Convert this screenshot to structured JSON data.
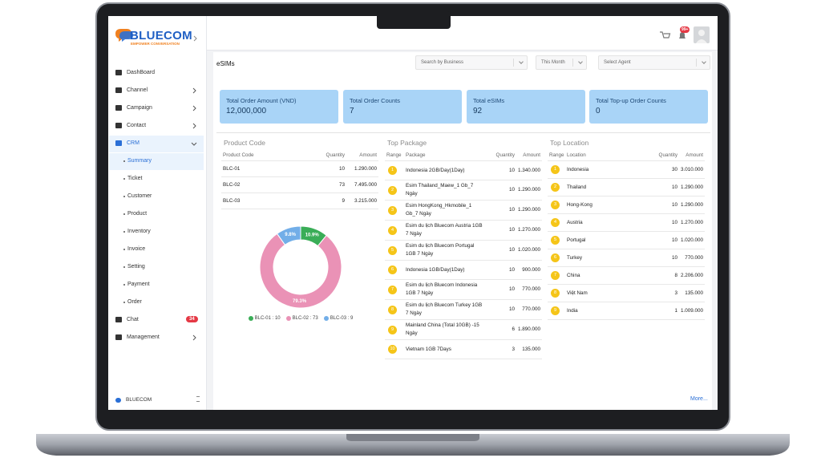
{
  "brand": {
    "name": "BLUECOM",
    "tagline": "EMPOWER CONVERSATION"
  },
  "header": {
    "notification_badge": "99+"
  },
  "sidebar": {
    "items": [
      {
        "label": "DashBoard"
      },
      {
        "label": "Channel",
        "expandable": true
      },
      {
        "label": "Campaign",
        "expandable": true
      },
      {
        "label": "Contact",
        "expandable": true
      },
      {
        "label": "CRM",
        "expandable": true,
        "open": true,
        "active": true
      },
      {
        "label": "Summary",
        "sub": true,
        "active": true
      },
      {
        "label": "Ticket",
        "sub": true
      },
      {
        "label": "Customer",
        "sub": true
      },
      {
        "label": "Product",
        "sub": true
      },
      {
        "label": "Inventory",
        "sub": true
      },
      {
        "label": "Invoice",
        "sub": true
      },
      {
        "label": "Setting",
        "sub": true
      },
      {
        "label": "Payment",
        "sub": true
      },
      {
        "label": "Order",
        "sub": true
      },
      {
        "label": "Chat",
        "badge": 34
      },
      {
        "label": "Management",
        "expandable": true
      }
    ],
    "footer": "BLUECOM"
  },
  "page": {
    "title": "eSIMs",
    "filters": [
      "Search by Business",
      "This Month",
      "Select Agent"
    ]
  },
  "stats": [
    {
      "label": "Total Order Amount (VND)",
      "value": "12,000,000"
    },
    {
      "label": "Total Order Counts",
      "value": 7
    },
    {
      "label": "Total eSIMs",
      "value": 92
    },
    {
      "label": "Total Top-up Order Counts",
      "value": 0
    }
  ],
  "product_code": {
    "title": "Product Code",
    "columns": [
      "Product Code",
      "Quantity",
      "Amount"
    ],
    "rows": [
      [
        "BLC-01",
        10,
        "1.290.000"
      ],
      [
        "BLC-02",
        73,
        "7.495.000"
      ],
      [
        "BLC-03",
        9,
        "3.215.000"
      ]
    ]
  },
  "top_package": {
    "title": "Top Package",
    "columns": [
      "Range",
      "Package",
      "Quantity",
      "Amount"
    ],
    "rows": [
      [
        1,
        "Indonesia 2GB/Day(1Day)",
        10,
        "1.340.000"
      ],
      [
        2,
        "Esim Thailand_Maew_1 Gb_7 Ngày",
        10,
        "1.290.000"
      ],
      [
        3,
        "Esim HongKong_Hkmobile_1 Gb_7 Ngày",
        10,
        "1.290.000"
      ],
      [
        4,
        "Esim du lịch Bluecom Austria 1GB 7 Ngày",
        10,
        "1.270.000"
      ],
      [
        5,
        "Esim du lịch Bluecom Portugal 1GB 7 Ngày",
        10,
        "1.020.000"
      ],
      [
        6,
        "Indonesia 1GB/Day(1Day)",
        10,
        "900.000"
      ],
      [
        7,
        "Esim du lịch Bluecom Indonesia 1GB 7 Ngày",
        10,
        "770.000"
      ],
      [
        8,
        "Esim du lịch Bluecom Turkey 1GB 7 Ngày",
        10,
        "770.000"
      ],
      [
        9,
        "Mainland China (Total 10GB) -15 Ngày",
        6,
        "1.890.000"
      ],
      [
        10,
        "Vietnam 1GB 7Days",
        3,
        "135.000"
      ]
    ]
  },
  "top_location": {
    "title": "Top Location",
    "columns": [
      "Range",
      "Location",
      "Quantity",
      "Amount"
    ],
    "rows": [
      [
        1,
        "Indonesia",
        30,
        "3.010.000"
      ],
      [
        2,
        "Thailand",
        10,
        "1.290.000"
      ],
      [
        3,
        "Hong-Kong",
        10,
        "1.290.000"
      ],
      [
        4,
        "Austria",
        10,
        "1.270.000"
      ],
      [
        5,
        "Portugal",
        10,
        "1.020.000"
      ],
      [
        6,
        "Turkey",
        10,
        "770.000"
      ],
      [
        7,
        "China",
        8,
        "2.206.000"
      ],
      [
        8,
        "Việt Nam",
        3,
        "135.000"
      ],
      [
        9,
        "India",
        1,
        "1.009.000"
      ]
    ],
    "more": "More..."
  },
  "chart_data": {
    "type": "pie",
    "donut": true,
    "categories": [
      "BLC-01",
      "BLC-02",
      "BLC-03"
    ],
    "values": [
      10,
      73,
      9
    ],
    "value_labels": [
      "10.9%",
      "79.3%",
      "9.8%"
    ],
    "colors": [
      "#3aad57",
      "#ea92b6",
      "#72aee8"
    ],
    "legend": [
      "BLC-01 : 10",
      "BLC-02 : 73",
      "BLC-03 : 9"
    ]
  }
}
